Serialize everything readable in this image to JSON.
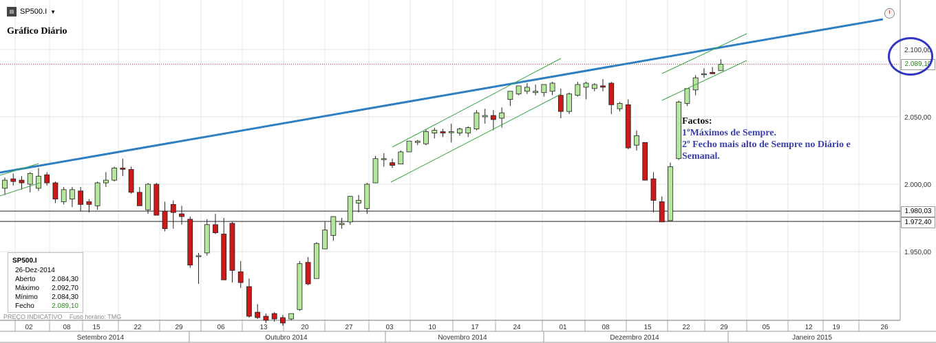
{
  "header": {
    "symbol": "SP500.I",
    "dropdown_icon": "caret-down-icon",
    "clock_icon": "clock-icon"
  },
  "chart_title": "Gráfico Diário",
  "annotation": {
    "heading": "Factos:",
    "lines": [
      "1ºMáximos de Sempre.",
      "2º Fecho mais alto de Sempre no Diário e",
      "Semanal."
    ]
  },
  "info_box": {
    "symbol": "SP500.I",
    "date": "26-Dez-2014",
    "rows": [
      {
        "label": "Aberto",
        "value": "2.084,30"
      },
      {
        "label": "Máximo",
        "value": "2.092,70"
      },
      {
        "label": "Mínimo",
        "value": "2.084,30"
      },
      {
        "label": "Fecho",
        "value": "2.089,10"
      }
    ]
  },
  "footer": {
    "note": "PREÇO INDICATIVO",
    "timezone": "Fuso horário: TMG"
  },
  "price_labels": {
    "last": "2.089,10",
    "line1": "1.980,03",
    "line2": "1.972,40"
  },
  "colors": {
    "up": "#b4e69b",
    "down": "#cc1a1a",
    "trendline": "#2d7fc1",
    "channel": "#3aa64a",
    "circle": "#3236c4",
    "annotation": "#3a3fa8"
  },
  "chart_data": {
    "type": "candlestick",
    "y_ticks": [
      "2.100,00",
      "2.050,00",
      "2.000,00",
      "1.950,00"
    ],
    "y_tick_values": [
      2100,
      2050,
      2000,
      1950
    ],
    "ylim": [
      1900,
      2135
    ],
    "x_day_ticks": [
      "02",
      "08",
      "15",
      "22",
      "29",
      "06",
      "13",
      "20",
      "27",
      "03",
      "10",
      "17",
      "24",
      "01",
      "08",
      "15",
      "22",
      "29",
      "05",
      "12",
      "19",
      "26"
    ],
    "x_months": [
      "Setembro 2014",
      "Outubro 2014",
      "Novembro 2014",
      "Dezembro 2014",
      "Janeiro 2015"
    ],
    "horizontal_lines": [
      1980.03,
      1972.4
    ],
    "last_price": 2089.1,
    "candles": [
      {
        "o": 1997,
        "h": 2005,
        "l": 1992,
        "c": 2003
      },
      {
        "o": 2004,
        "h": 2008,
        "l": 1999,
        "c": 2002
      },
      {
        "o": 2003,
        "h": 2006,
        "l": 1996,
        "c": 2001
      },
      {
        "o": 2000,
        "h": 2009,
        "l": 1994,
        "c": 2008
      },
      {
        "o": 1997,
        "h": 2012,
        "l": 1995,
        "c": 2006
      },
      {
        "o": 2007,
        "h": 2009,
        "l": 1999,
        "c": 2001
      },
      {
        "o": 2001,
        "h": 2002,
        "l": 1986,
        "c": 1989
      },
      {
        "o": 1987,
        "h": 1998,
        "l": 1985,
        "c": 1996
      },
      {
        "o": 1989,
        "h": 1998,
        "l": 1983,
        "c": 1996
      },
      {
        "o": 1995,
        "h": 1998,
        "l": 1980,
        "c": 1985
      },
      {
        "o": 1987,
        "h": 1989,
        "l": 1979,
        "c": 1985
      },
      {
        "o": 1984,
        "h": 2002,
        "l": 1981,
        "c": 2001
      },
      {
        "o": 2001,
        "h": 2009,
        "l": 1998,
        "c": 2003
      },
      {
        "o": 2003,
        "h": 2013,
        "l": 2002,
        "c": 2012
      },
      {
        "o": 2012,
        "h": 2019,
        "l": 2006,
        "c": 2011
      },
      {
        "o": 2011,
        "h": 2013,
        "l": 1993,
        "c": 1994
      },
      {
        "o": 1994,
        "h": 1998,
        "l": 1984,
        "c": 1984
      },
      {
        "o": 1981,
        "h": 2001,
        "l": 1978,
        "c": 2000
      },
      {
        "o": 2000,
        "h": 2001,
        "l": 1977,
        "c": 1977
      },
      {
        "o": 1980,
        "h": 1987,
        "l": 1965,
        "c": 1967
      },
      {
        "o": 1985,
        "h": 1988,
        "l": 1967,
        "c": 1979
      },
      {
        "o": 1978,
        "h": 1984,
        "l": 1970,
        "c": 1976
      },
      {
        "o": 1974,
        "h": 1976,
        "l": 1938,
        "c": 1940
      },
      {
        "o": 1947,
        "h": 1949,
        "l": 1926,
        "c": 1947
      },
      {
        "o": 1949,
        "h": 1974,
        "l": 1947,
        "c": 1970
      },
      {
        "o": 1970,
        "h": 1978,
        "l": 1963,
        "c": 1964
      },
      {
        "o": 1963,
        "h": 1975,
        "l": 1930,
        "c": 1929
      },
      {
        "o": 1971,
        "h": 1972,
        "l": 1927,
        "c": 1936
      },
      {
        "o": 1935,
        "h": 1943,
        "l": 1923,
        "c": 1927
      },
      {
        "o": 1924,
        "h": 1930,
        "l": 1901,
        "c": 1902
      },
      {
        "o": 1905,
        "h": 1911,
        "l": 1900,
        "c": 1901
      },
      {
        "o": 1902,
        "h": 1904,
        "l": 1897,
        "c": 1899
      },
      {
        "o": 1904,
        "h": 1905,
        "l": 1898,
        "c": 1900
      },
      {
        "o": 1901,
        "h": 1903,
        "l": 1895,
        "c": 1897
      },
      {
        "o": 1900,
        "h": 1904,
        "l": 1899,
        "c": 1904
      },
      {
        "o": 1907,
        "h": 1943,
        "l": 1906,
        "c": 1941
      },
      {
        "o": 1942,
        "h": 1946,
        "l": 1925,
        "c": 1926
      },
      {
        "o": 1930,
        "h": 1957,
        "l": 1930,
        "c": 1956
      },
      {
        "o": 1952,
        "h": 1972,
        "l": 1952,
        "c": 1966
      },
      {
        "o": 1962,
        "h": 1976,
        "l": 1958,
        "c": 1976
      },
      {
        "o": 1970,
        "h": 1975,
        "l": 1967,
        "c": 1971
      },
      {
        "o": 1972,
        "h": 1991,
        "l": 1970,
        "c": 1991
      },
      {
        "o": 1986,
        "h": 1992,
        "l": 1979,
        "c": 1988
      },
      {
        "o": 1982,
        "h": 2001,
        "l": 1978,
        "c": 2000
      },
      {
        "o": 2001,
        "h": 2021,
        "l": 2001,
        "c": 2019
      },
      {
        "o": 2019,
        "h": 2023,
        "l": 2013,
        "c": 2019
      },
      {
        "o": 2016,
        "h": 2019,
        "l": 2012,
        "c": 2014
      },
      {
        "o": 2015,
        "h": 2025,
        "l": 2015,
        "c": 2024
      },
      {
        "o": 2024,
        "h": 2032,
        "l": 2024,
        "c": 2032
      },
      {
        "o": 2031,
        "h": 2033,
        "l": 2029,
        "c": 2032
      },
      {
        "o": 2030,
        "h": 2041,
        "l": 2029,
        "c": 2039
      },
      {
        "o": 2038,
        "h": 2042,
        "l": 2034,
        "c": 2040
      },
      {
        "o": 2039,
        "h": 2041,
        "l": 2035,
        "c": 2038
      },
      {
        "o": 2039,
        "h": 2045,
        "l": 2031,
        "c": 2039
      },
      {
        "o": 2038,
        "h": 2042,
        "l": 2036,
        "c": 2041
      },
      {
        "o": 2038,
        "h": 2043,
        "l": 2035,
        "c": 2042
      },
      {
        "o": 2041,
        "h": 2055,
        "l": 2040,
        "c": 2053
      },
      {
        "o": 2050,
        "h": 2056,
        "l": 2045,
        "c": 2051
      },
      {
        "o": 2051,
        "h": 2055,
        "l": 2040,
        "c": 2048
      },
      {
        "o": 2049,
        "h": 2057,
        "l": 2042,
        "c": 2053
      },
      {
        "o": 2063,
        "h": 2068,
        "l": 2058,
        "c": 2069
      },
      {
        "o": 2067,
        "h": 2073,
        "l": 2066,
        "c": 2073
      },
      {
        "o": 2069,
        "h": 2075,
        "l": 2067,
        "c": 2072
      },
      {
        "o": 2068,
        "h": 2074,
        "l": 2066,
        "c": 2069
      },
      {
        "o": 2068,
        "h": 2074,
        "l": 2065,
        "c": 2074
      },
      {
        "o": 2069,
        "h": 2076,
        "l": 2066,
        "c": 2075
      },
      {
        "o": 2066,
        "h": 2071,
        "l": 2049,
        "c": 2054
      },
      {
        "o": 2054,
        "h": 2068,
        "l": 2052,
        "c": 2067
      },
      {
        "o": 2066,
        "h": 2076,
        "l": 2065,
        "c": 2074
      },
      {
        "o": 2072,
        "h": 2076,
        "l": 2063,
        "c": 2075
      },
      {
        "o": 2071,
        "h": 2075,
        "l": 2069,
        "c": 2074
      },
      {
        "o": 2073,
        "h": 2078,
        "l": 2069,
        "c": 2072
      },
      {
        "o": 2075,
        "h": 2076,
        "l": 2052,
        "c": 2059
      },
      {
        "o": 2056,
        "h": 2061,
        "l": 2054,
        "c": 2060
      },
      {
        "o": 2059,
        "h": 2063,
        "l": 2026,
        "c": 2027
      },
      {
        "o": 2029,
        "h": 2040,
        "l": 2025,
        "c": 2036
      },
      {
        "o": 2031,
        "h": 2031,
        "l": 2003,
        "c": 2003
      },
      {
        "o": 2004,
        "h": 2009,
        "l": 1979,
        "c": 1988
      },
      {
        "o": 1987,
        "h": 1991,
        "l": 1972,
        "c": 1972
      },
      {
        "o": 1973,
        "h": 2016,
        "l": 1973,
        "c": 2013
      },
      {
        "o": 2019,
        "h": 2062,
        "l": 2018,
        "c": 2061
      },
      {
        "o": 2060,
        "h": 2070,
        "l": 2058,
        "c": 2071
      },
      {
        "o": 2070,
        "h": 2081,
        "l": 2066,
        "c": 2079
      },
      {
        "o": 2082,
        "h": 2086,
        "l": 2079,
        "c": 2082
      },
      {
        "o": 2083,
        "h": 2087,
        "l": 2082,
        "c": 2082
      },
      {
        "o": 2084.3,
        "h": 2092.7,
        "l": 2084.3,
        "c": 2089.1
      }
    ]
  }
}
